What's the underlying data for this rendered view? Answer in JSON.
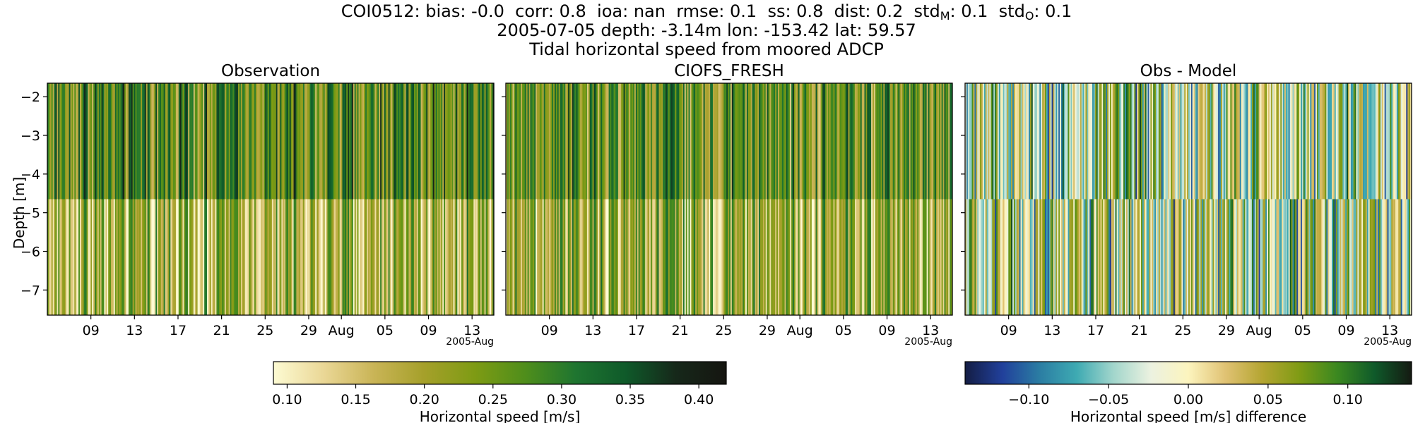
{
  "header": {
    "line1_parts": [
      {
        "t": "COI0512: bias: -0.0  corr: 0.8  ioa: nan  rmse: 0.1  ss: 0.8  dist: 0.2  std"
      },
      {
        "t": "M",
        "sub": true
      },
      {
        "t": ": 0.1  std"
      },
      {
        "t": "O",
        "sub": true
      },
      {
        "t": ": 0.1"
      }
    ],
    "line2": "2005-07-05 depth: -3.14m lon: -153.42 lat: 59.57",
    "line3": "Tidal horizontal speed from moored ADCP"
  },
  "panels": [
    {
      "title": "Observation"
    },
    {
      "title": "CIOFS_FRESH"
    },
    {
      "title": "Obs - Model"
    }
  ],
  "y_axis_label": "Depth [m]",
  "chart_data": [
    {
      "type": "heatmap",
      "title": "Observation",
      "ylabel": "Depth [m]",
      "y_ticks": [
        -2,
        -3,
        -4,
        -5,
        -6,
        -7
      ],
      "y_tick_labels": [
        "−2",
        "−3",
        "−4",
        "−5",
        "−6",
        "−7"
      ],
      "ylim": [
        -7.65,
        -1.65
      ],
      "x_start": "2005-07-05",
      "x_end": "2005-08-15",
      "x_ticks": [
        "2005-07-09",
        "2005-07-13",
        "2005-07-17",
        "2005-07-21",
        "2005-07-25",
        "2005-07-29",
        "2005-08-01",
        "2005-08-05",
        "2005-08-09",
        "2005-08-13"
      ],
      "x_tick_labels": [
        "09",
        "13",
        "17",
        "21",
        "25",
        "29",
        "Aug",
        "05",
        "09",
        "13"
      ],
      "x_offset_label": "2005-Aug",
      "depth_layers": [
        {
          "top": -1.65,
          "bottom": -4.65,
          "mean_value": 0.27
        },
        {
          "top": -4.65,
          "bottom": -7.65,
          "mean_value": 0.19
        }
      ],
      "colorbar": "speed"
    },
    {
      "type": "heatmap",
      "title": "CIOFS_FRESH",
      "y_ticks": [
        -2,
        -3,
        -4,
        -5,
        -6,
        -7
      ],
      "ylim": [
        -7.65,
        -1.65
      ],
      "x_start": "2005-07-05",
      "x_end": "2005-08-15",
      "x_ticks": [
        "2005-07-09",
        "2005-07-13",
        "2005-07-17",
        "2005-07-21",
        "2005-07-25",
        "2005-07-29",
        "2005-08-01",
        "2005-08-05",
        "2005-08-09",
        "2005-08-13"
      ],
      "x_tick_labels": [
        "09",
        "13",
        "17",
        "21",
        "25",
        "29",
        "Aug",
        "05",
        "09",
        "13"
      ],
      "x_offset_label": "2005-Aug",
      "depth_layers": [
        {
          "top": -1.65,
          "bottom": -4.65,
          "mean_value": 0.25
        },
        {
          "top": -4.65,
          "bottom": -7.65,
          "mean_value": 0.2
        }
      ],
      "colorbar": "speed"
    },
    {
      "type": "heatmap",
      "title": "Obs - Model",
      "y_ticks": [
        -2,
        -3,
        -4,
        -5,
        -6,
        -7
      ],
      "ylim": [
        -7.65,
        -1.65
      ],
      "x_start": "2005-07-05",
      "x_end": "2005-08-15",
      "x_ticks": [
        "2005-07-09",
        "2005-07-13",
        "2005-07-17",
        "2005-07-21",
        "2005-07-25",
        "2005-07-29",
        "2005-08-01",
        "2005-08-05",
        "2005-08-09",
        "2005-08-13"
      ],
      "x_tick_labels": [
        "09",
        "13",
        "17",
        "21",
        "25",
        "29",
        "Aug",
        "05",
        "09",
        "13"
      ],
      "x_offset_label": "2005-Aug",
      "depth_layers": [
        {
          "top": -1.65,
          "bottom": -4.65,
          "mean_value": 0.0
        },
        {
          "top": -4.65,
          "bottom": -7.65,
          "mean_value": 0.0
        }
      ],
      "colorbar": "diff"
    }
  ],
  "colorbars": {
    "speed": {
      "label": "Horizontal speed [m/s]",
      "range": [
        0.09,
        0.42
      ],
      "ticks": [
        0.1,
        0.15,
        0.2,
        0.25,
        0.3,
        0.35,
        0.4
      ],
      "tick_labels": [
        "0.10",
        "0.15",
        "0.20",
        "0.25",
        "0.30",
        "0.35",
        "0.40"
      ],
      "colors": [
        "#fdfbd3",
        "#ead796",
        "#c9b456",
        "#a5a02a",
        "#7e9b14",
        "#4f8e1b",
        "#1f7530",
        "#0f5a2a",
        "#16281a",
        "#151510"
      ]
    },
    "diff": {
      "label": "Horizontal speed [m/s] difference",
      "range": [
        -0.14,
        0.14
      ],
      "ticks": [
        -0.1,
        -0.05,
        0.0,
        0.05,
        0.1
      ],
      "tick_labels": [
        "−0.10",
        "−0.05",
        "0.00",
        "0.05",
        "0.10"
      ],
      "colors": [
        "#141d44",
        "#21409b",
        "#2b7da3",
        "#3eaab2",
        "#a3d6cc",
        "#ecf2e0",
        "#fcf4be",
        "#e0c273",
        "#b4a531",
        "#7e9b14",
        "#3b8820",
        "#0f5a2a",
        "#151a12"
      ]
    }
  }
}
